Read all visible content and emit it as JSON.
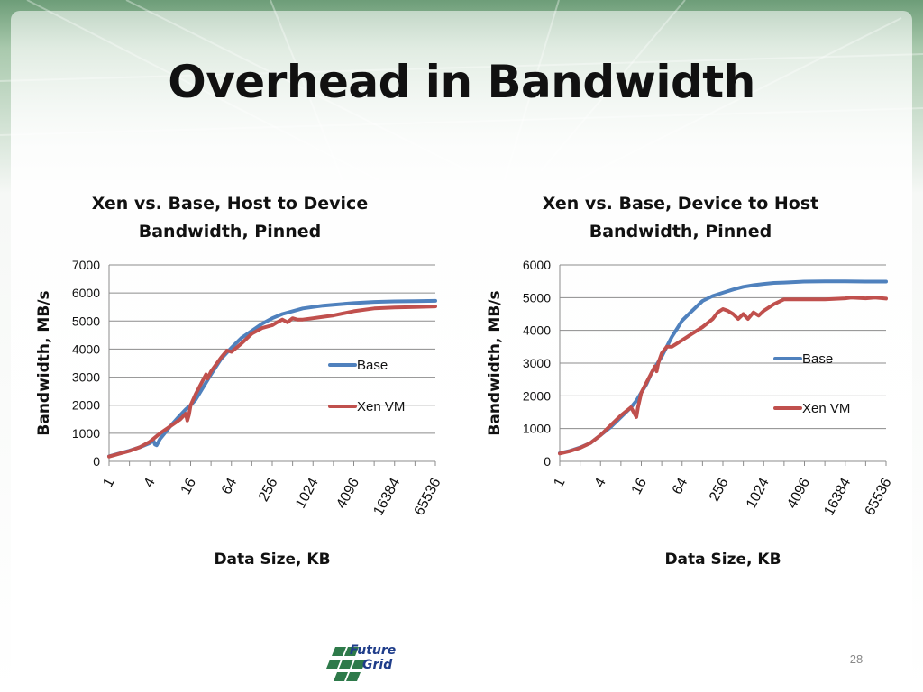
{
  "slide": {
    "title": "Overhead in Bandwidth",
    "page_number": "28",
    "logo": {
      "line1": "Future",
      "line2": "Grid"
    }
  },
  "colors": {
    "base": "#4f81bd",
    "xen": "#c0504d",
    "grid": "#8c8c8c"
  },
  "chart_data": [
    {
      "type": "line",
      "title_lines": [
        "Xen vs. Base, Host to Device",
        "Bandwidth, Pinned"
      ],
      "xlabel": "Data Size, KB",
      "ylabel": "Bandwidth, MB/s",
      "x_scale": "log2",
      "x_ticks": [
        "1",
        "4",
        "16",
        "64",
        "256",
        "1024",
        "4096",
        "16384",
        "65536"
      ],
      "ylim": [
        0,
        7000
      ],
      "y_ticks": [
        "0",
        "1000",
        "2000",
        "3000",
        "4000",
        "5000",
        "6000",
        "7000"
      ],
      "grid": true,
      "legend_position": "right",
      "series": [
        {
          "name": "Base",
          "x": [
            1,
            1.41,
            2,
            2.83,
            4,
            4.5,
            4.76,
            5.04,
            5.66,
            8,
            11.3,
            13.5,
            16,
            19,
            22.6,
            32,
            45,
            64,
            90,
            128,
            181,
            256,
            362,
            512,
            724,
            1024,
            1448,
            2048,
            4096,
            8192,
            16384,
            32768,
            65536
          ],
          "y": [
            180,
            280,
            380,
            500,
            650,
            750,
            600,
            570,
            800,
            1250,
            1650,
            1850,
            2000,
            2200,
            2500,
            3100,
            3650,
            4050,
            4400,
            4650,
            4900,
            5100,
            5250,
            5350,
            5450,
            5500,
            5550,
            5580,
            5640,
            5680,
            5700,
            5710,
            5720
          ]
        },
        {
          "name": "Xen VM",
          "x": [
            1,
            1.41,
            2,
            2.83,
            4,
            5.66,
            8,
            11.3,
            13.5,
            14.3,
            15.1,
            16,
            19,
            22.6,
            26.9,
            28.5,
            32,
            45,
            55,
            64,
            90,
            128,
            181,
            256,
            300,
            362,
            430,
            512,
            600,
            724,
            1024,
            1448,
            2048,
            4096,
            8192,
            16384,
            32768,
            65536
          ],
          "y": [
            170,
            270,
            370,
            500,
            700,
            1000,
            1250,
            1500,
            1700,
            1450,
            1650,
            2000,
            2400,
            2750,
            3100,
            2950,
            3200,
            3700,
            3950,
            3900,
            4200,
            4550,
            4750,
            4850,
            4950,
            5050,
            4950,
            5100,
            5050,
            5050,
            5100,
            5150,
            5200,
            5350,
            5450,
            5480,
            5500,
            5520
          ]
        }
      ]
    },
    {
      "type": "line",
      "title_lines": [
        "Xen vs. Base, Device to Host",
        "Bandwidth, Pinned"
      ],
      "xlabel": "Data Size, KB",
      "ylabel": "Bandwidth, MB/s",
      "x_scale": "log2",
      "x_ticks": [
        "1",
        "4",
        "16",
        "64",
        "256",
        "1024",
        "4096",
        "16384",
        "65536"
      ],
      "ylim": [
        0,
        6000
      ],
      "y_ticks": [
        "0",
        "1000",
        "2000",
        "3000",
        "4000",
        "5000",
        "6000"
      ],
      "grid": true,
      "legend_position": "right",
      "series": [
        {
          "name": "Base",
          "x": [
            1,
            1.41,
            2,
            2.83,
            4,
            5.66,
            8,
            11.3,
            13.5,
            16,
            19,
            22.6,
            32,
            45,
            64,
            90,
            128,
            181,
            256,
            362,
            512,
            724,
            1024,
            1448,
            2048,
            4096,
            8192,
            16384,
            32768,
            65536
          ],
          "y": [
            250,
            320,
            420,
            560,
            800,
            1050,
            1350,
            1650,
            1850,
            2100,
            2350,
            2700,
            3200,
            3800,
            4300,
            4600,
            4900,
            5050,
            5150,
            5250,
            5330,
            5380,
            5420,
            5450,
            5460,
            5490,
            5500,
            5500,
            5490,
            5490
          ]
        },
        {
          "name": "Xen VM",
          "x": [
            1,
            1.41,
            2,
            2.83,
            4,
            5.66,
            8,
            11.3,
            12.7,
            13.5,
            14.3,
            16,
            19,
            22.6,
            25.4,
            26.9,
            28.5,
            32,
            38,
            45,
            64,
            90,
            128,
            181,
            215,
            256,
            300,
            362,
            430,
            512,
            600,
            724,
            860,
            1024,
            1448,
            2048,
            3000,
            4096,
            8192,
            16384,
            20000,
            32768,
            45000,
            65536
          ],
          "y": [
            240,
            310,
            410,
            560,
            800,
            1100,
            1400,
            1650,
            1450,
            1350,
            1650,
            2100,
            2400,
            2700,
            2900,
            2750,
            3000,
            3300,
            3500,
            3500,
            3700,
            3900,
            4100,
            4350,
            4550,
            4650,
            4600,
            4500,
            4350,
            4500,
            4350,
            4550,
            4450,
            4600,
            4800,
            4950,
            4950,
            4950,
            4950,
            4980,
            5000,
            4980,
            5000,
            4970
          ]
        }
      ]
    }
  ]
}
